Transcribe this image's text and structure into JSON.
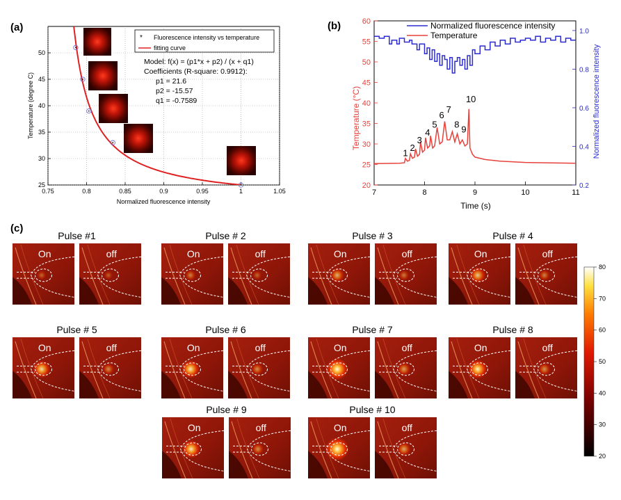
{
  "colors": {
    "red": "#e8403a",
    "blue": "#2b2bd0",
    "fit": "#e02020"
  },
  "chart_data": [
    {
      "id": "a",
      "type": "scatter",
      "panel_label": "(a)",
      "xlabel": "Normalized fluorescence intensity",
      "ylabel": "Temperature (degree C)",
      "xlim": [
        0.75,
        1.05
      ],
      "ylim": [
        25,
        55
      ],
      "x_ticks": [
        "0.75",
        "0.8",
        "0.85",
        "0.9",
        "0.95",
        "1",
        "1.05"
      ],
      "y_ticks": [
        "25",
        "30",
        "35",
        "40",
        "45",
        "50"
      ],
      "x_tick_values": [
        0.75,
        0.8,
        0.85,
        0.9,
        0.95,
        1.0,
        1.05
      ],
      "y_tick_values": [
        25,
        30,
        35,
        40,
        45,
        50
      ],
      "grid": true,
      "legend": {
        "position": "top-right",
        "entries": [
          "Fluorescence intensity vs temperature",
          "fitting curve"
        ]
      },
      "points": [
        {
          "x": 0.786,
          "y": 51
        },
        {
          "x": 0.795,
          "y": 45
        },
        {
          "x": 0.803,
          "y": 39
        },
        {
          "x": 0.834,
          "y": 33
        },
        {
          "x": 1.0,
          "y": 25
        }
      ],
      "fit": {
        "p1": 21.6,
        "p2": -15.57,
        "q1": -0.7589
      },
      "annotations": [
        "Model: f(x) = (p1*x + p2) / (x + q1)",
        "Coefficients (R-square: 0.9912):",
        "p1 = 21.6",
        "p2 = -15.57",
        "q1 = -0.7589"
      ]
    },
    {
      "id": "b",
      "type": "line",
      "panel_label": "(b)",
      "xlabel": "Time (s)",
      "ylabel_left": "Temperature (°C)",
      "ylabel_right": "Normalized fluorescence intensity",
      "xlim": [
        7,
        11
      ],
      "ylim_left": [
        20,
        60
      ],
      "ylim_right": [
        0.2,
        1.05
      ],
      "x_ticks": [
        "7",
        "8",
        "9",
        "10",
        "11"
      ],
      "y_ticks_left": [
        "20",
        "25",
        "30",
        "35",
        "40",
        "45",
        "50",
        "55",
        "60"
      ],
      "y_ticks_right": [
        "0.2",
        "0.4",
        "0.6",
        "0.8",
        "1.0"
      ],
      "x_tick_values": [
        7,
        8,
        9,
        10,
        11
      ],
      "y_tick_values_left": [
        20,
        25,
        30,
        35,
        40,
        45,
        50,
        55,
        60
      ],
      "y_tick_values_right": [
        0.2,
        0.4,
        0.6,
        0.8,
        1.0
      ],
      "legend": {
        "position": "top",
        "entries": [
          "Normalized fluorescence intensity",
          "Temperature"
        ]
      },
      "series": [
        {
          "name": "Normalized fluorescence intensity",
          "axis": "right",
          "x": [
            7.0,
            7.1,
            7.2,
            7.3,
            7.35,
            7.45,
            7.5,
            7.6,
            7.7,
            7.75,
            7.85,
            7.9,
            8.0,
            8.05,
            8.1,
            8.15,
            8.2,
            8.25,
            8.3,
            8.35,
            8.4,
            8.45,
            8.5,
            8.55,
            8.6,
            8.65,
            8.7,
            8.75,
            8.8,
            8.85,
            8.9,
            8.95,
            9.0,
            9.1,
            9.2,
            9.3,
            9.4,
            9.5,
            9.6,
            9.7,
            9.8,
            9.9,
            10.0,
            10.1,
            10.2,
            10.3,
            10.4,
            10.5,
            10.6,
            10.7,
            10.8,
            10.9,
            11.0
          ],
          "values": [
            0.97,
            0.96,
            0.97,
            0.93,
            0.95,
            0.93,
            0.96,
            0.94,
            0.95,
            0.93,
            0.9,
            0.93,
            0.88,
            0.91,
            0.85,
            0.9,
            0.84,
            0.88,
            0.82,
            0.87,
            0.85,
            0.8,
            0.86,
            0.78,
            0.84,
            0.86,
            0.82,
            0.85,
            0.8,
            0.87,
            0.82,
            0.9,
            0.88,
            0.92,
            0.9,
            0.94,
            0.92,
            0.95,
            0.93,
            0.96,
            0.94,
            0.95,
            0.96,
            0.95,
            0.97,
            0.94,
            0.96,
            0.95,
            0.97,
            0.94,
            0.96,
            0.95,
            0.96
          ]
        },
        {
          "name": "Temperature",
          "axis": "left",
          "x": [
            7.0,
            7.5,
            7.6,
            7.62,
            7.66,
            7.7,
            7.72,
            7.76,
            7.8,
            7.82,
            7.86,
            7.9,
            7.92,
            7.96,
            8.0,
            8.02,
            8.06,
            8.1,
            8.12,
            8.16,
            8.2,
            8.25,
            8.3,
            8.35,
            8.4,
            8.45,
            8.5,
            8.55,
            8.6,
            8.65,
            8.7,
            8.75,
            8.8,
            8.85,
            8.88,
            8.9,
            8.95,
            9.0,
            9.2,
            9.5,
            10.0,
            11.0
          ],
          "values": [
            25.2,
            25.3,
            25.4,
            26.5,
            25.8,
            26.0,
            27.6,
            26.5,
            26.8,
            28.8,
            27.0,
            27.5,
            30.5,
            28.0,
            28.5,
            31.5,
            29.0,
            29.5,
            32.0,
            29.0,
            29.5,
            34.0,
            30.0,
            30.5,
            35.5,
            31.0,
            31.0,
            33.0,
            30.5,
            32.5,
            30.0,
            31.0,
            29.5,
            30.0,
            38.5,
            29.0,
            27.5,
            26.8,
            26.2,
            25.8,
            25.5,
            25.3
          ]
        }
      ],
      "pulse_labels": [
        {
          "text": "1",
          "x": 7.62,
          "y": 27.0
        },
        {
          "text": "2",
          "x": 7.76,
          "y": 28.3
        },
        {
          "text": "3",
          "x": 7.9,
          "y": 30.2
        },
        {
          "text": "4",
          "x": 8.06,
          "y": 32.0
        },
        {
          "text": "5",
          "x": 8.2,
          "y": 34.0
        },
        {
          "text": "6",
          "x": 8.34,
          "y": 36.3
        },
        {
          "text": "7",
          "x": 8.48,
          "y": 37.6
        },
        {
          "text": "8",
          "x": 8.64,
          "y": 34.0
        },
        {
          "text": "9",
          "x": 8.78,
          "y": 32.8
        },
        {
          "text": "10",
          "x": 8.92,
          "y": 40.2
        }
      ]
    },
    {
      "id": "c",
      "type": "heatmap",
      "panel_label": "(c)",
      "on_label": "On",
      "off_label": "off",
      "pulses": [
        {
          "title": "Pulse #1",
          "intensity": 0.05
        },
        {
          "title": "Pulse # 2",
          "intensity": 0.15
        },
        {
          "title": "Pulse # 3",
          "intensity": 0.35
        },
        {
          "title": "Pulse # 4",
          "intensity": 0.45
        },
        {
          "title": "Pulse # 5",
          "intensity": 0.55
        },
        {
          "title": "Pulse # 6",
          "intensity": 0.6
        },
        {
          "title": "Pulse # 7",
          "intensity": 0.8
        },
        {
          "title": "Pulse # 8",
          "intensity": 0.65
        },
        {
          "title": "Pulse # 9",
          "intensity": 0.6
        },
        {
          "title": "Pulse # 10",
          "intensity": 0.9
        }
      ],
      "colorbar": {
        "min": 20,
        "max": 80,
        "ticks": [
          "20",
          "30",
          "40",
          "50",
          "60",
          "70",
          "80"
        ],
        "tick_values": [
          20,
          30,
          40,
          50,
          60,
          70,
          80
        ]
      }
    }
  ]
}
